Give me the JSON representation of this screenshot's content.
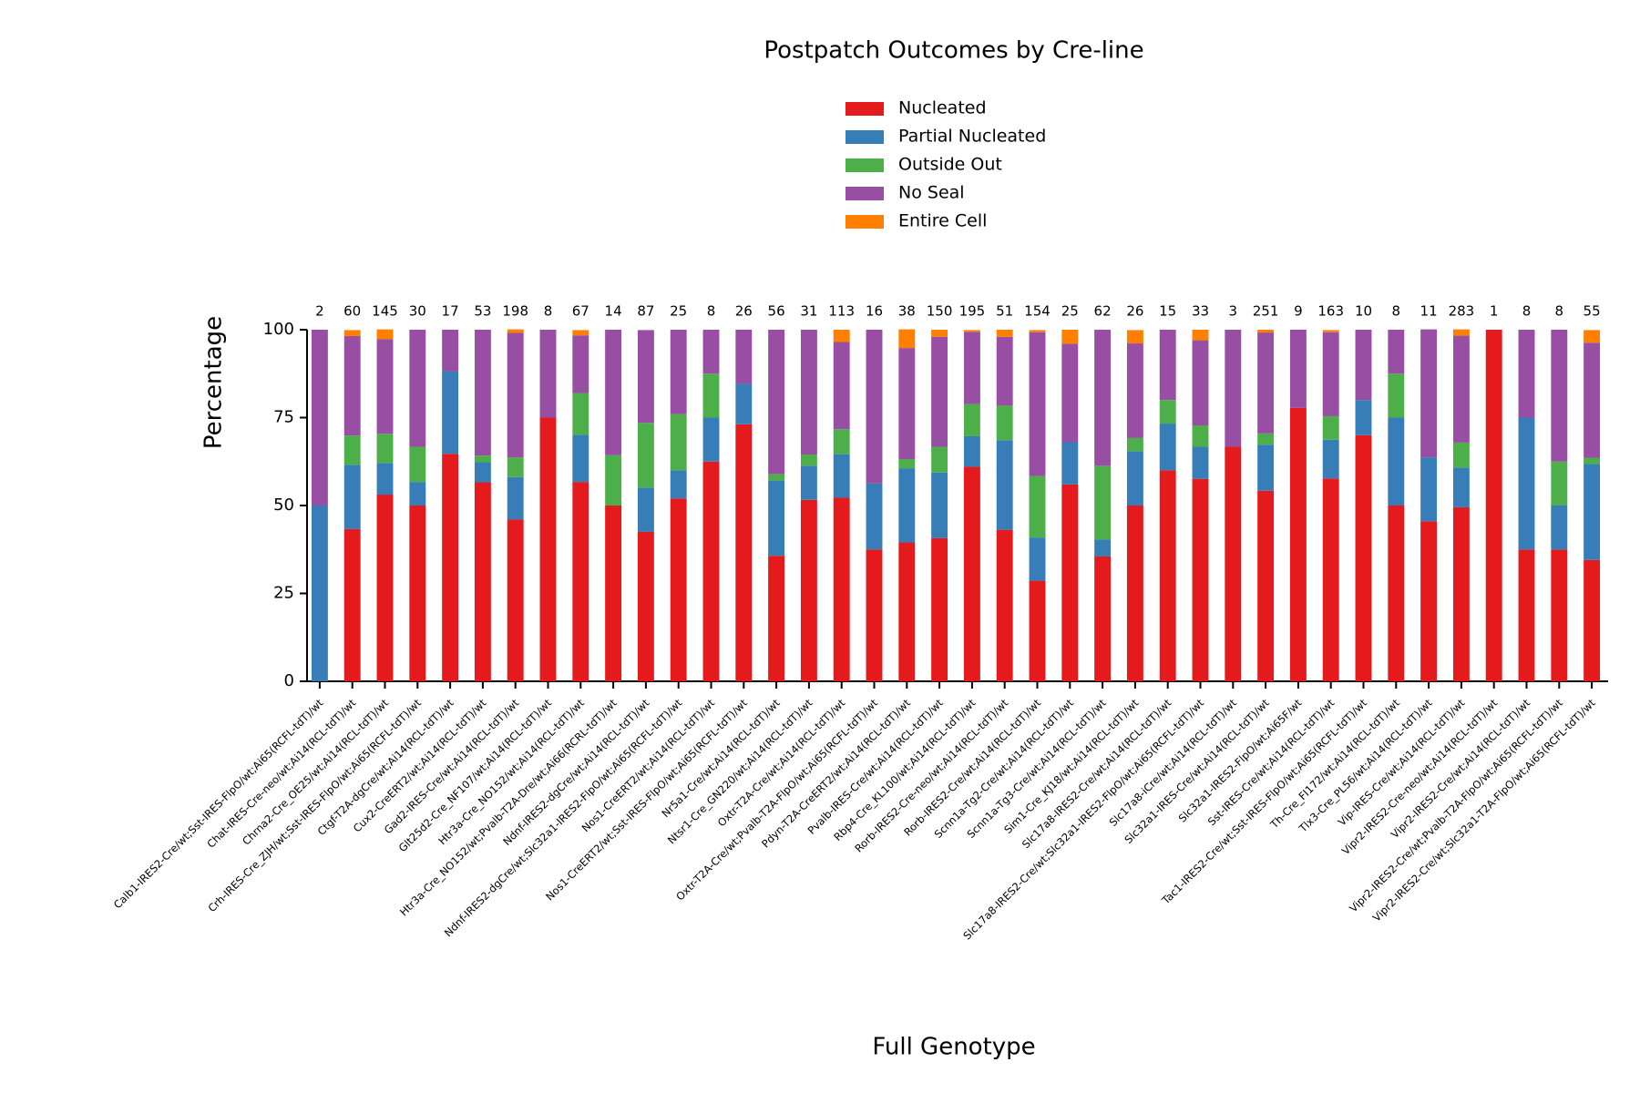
{
  "chart_data": {
    "type": "stacked_bar",
    "title": "Postpatch Outcomes by Cre-line",
    "x_label": "Full Genotype",
    "y_label": "Percentage",
    "categories": [
      "Calb1-IRES2-Cre/wt;Sst-IRES-FlpO/wt;Ai65(RCFL-tdT)/wt",
      "Chat-IRES-Cre-neo/wt;Ai14(RCL-tdT)/wt",
      "Chrna2-Cre_OE25/wt;Ai14(RCL-tdT)/wt",
      "Crh-IRES-Cre_ZJH/wt;Sst-IRES-FlpO/wt;Ai65(RCFL-tdT)/wt",
      "Ctgf-T2A-dgCre/wt;Ai14(RCL-tdT)/wt",
      "Cux2-CreERT2/wt;Ai14(RCL-tdT)/wt",
      "Gad2-IRES-Cre/wt;Ai14(RCL-tdT)/wt",
      "Glt25d2-Cre_NF107/wt;Ai14(RCL-tdT)/wt",
      "Htr3a-Cre_NO152/wt;Ai14(RCL-tdT)/wt",
      "Htr3a-Cre_NO152/wt;Pvalb-T2A-Dre/wt;Ai66(RCRL-tdT)/wt",
      "Ndnf-IRES2-dgCre/wt;Ai14(RCL-tdT)/wt",
      "Ndnf-IRES2-dgCre/wt;Slc32a1-IRES2-FlpO/wt;Ai65(RCFL-tdT)/wt",
      "Nos1-CreERT2/wt;Ai14(RCL-tdT)/wt",
      "Nos1-CreERT2/wt;Sst-IRES-FlpO/wt;Ai65(RCFL-tdT)/wt",
      "Nr5a1-Cre/wt;Ai14(RCL-tdT)/wt",
      "Ntsr1-Cre_GN220/wt;Ai14(RCL-tdT)/wt",
      "Oxtr-T2A-Cre/wt;Ai14(RCL-tdT)/wt",
      "Oxtr-T2A-Cre/wt;Pvalb-T2A-FlpO/wt;Ai65(RCFL-tdT)/wt",
      "Pdyn-T2A-CreERT2/wt;Ai14(RCL-tdT)/wt",
      "Pvalb-IRES-Cre/wt;Ai14(RCL-tdT)/wt",
      "Rbp4-Cre_KL100/wt;Ai14(RCL-tdT)/wt",
      "Rorb-IRES2-Cre-neo/wt;Ai14(RCL-tdT)/wt",
      "Rorb-IRES2-Cre/wt;Ai14(RCL-tdT)/wt",
      "Scnn1a-Tg2-Cre/wt;Ai14(RCL-tdT)/wt",
      "Scnn1a-Tg3-Cre/wt;Ai14(RCL-tdT)/wt",
      "Sim1-Cre_KJ18/wt;Ai14(RCL-tdT)/wt",
      "Slc17a8-IRES2-Cre/wt;Ai14(RCL-tdT)/wt",
      "Slc17a8-IRES2-Cre/wt;Slc32a1-IRES2-FlpO/wt;Ai65(RCFL-tdT)/wt",
      "Slc17a8-iCre/wt;Ai14(RCL-tdT)/wt",
      "Slc32a1-IRES-Cre/wt;Ai14(RCL-tdT)/wt",
      "Slc32a1-IRES2-FlpO/wt;Ai65F/wt",
      "Sst-IRES-Cre/wt;Ai14(RCL-tdT)/wt",
      "Tac1-IRES2-Cre/wt;Sst-IRES-FlpO/wt;Ai65(RCFL-tdT)/wt",
      "Th-Cre_FI172/wt;Ai14(RCL-tdT)/wt",
      "Tlx3-Cre_PL56/wt;Ai14(RCL-tdT)/wt",
      "Vip-IRES-Cre/wt;Ai14(RCL-tdT)/wt",
      "Vipr2-IRES2-Cre-neo/wt;Ai14(RCL-tdT)/wt",
      "Vipr2-IRES2-Cre/wt;Ai14(RCL-tdT)/wt",
      "Vipr2-IRES2-Cre/wt;Pvalb-T2A-FlpO/wt;Ai65(RCFL-tdT)/wt",
      "Vipr2-IRES2-Cre/wt;Slc32a1-T2A-FlpO/wt;Ai65(RCFL-tdT)/wt"
    ],
    "bar_counts": [
      2,
      60,
      145,
      30,
      17,
      53,
      198,
      8,
      67,
      14,
      87,
      25,
      8,
      26,
      56,
      31,
      113,
      16,
      38,
      150,
      195,
      51,
      154,
      25,
      62,
      26,
      15,
      33,
      3,
      251,
      9,
      163,
      10,
      8,
      11,
      283,
      1,
      8,
      8,
      55
    ],
    "series": [
      {
        "name": "Nucleated",
        "color": "#e41a1c",
        "values": [
          0,
          43.3,
          53.1,
          50,
          64.7,
          56.6,
          46.0,
          75,
          56.7,
          50,
          42.5,
          52,
          62.5,
          73.1,
          35.7,
          51.6,
          52.2,
          37.5,
          39.5,
          40.7,
          61.0,
          43.1,
          28.6,
          56,
          35.5,
          50,
          60,
          57.6,
          66.7,
          54.2,
          77.8,
          57.7,
          70,
          50,
          45.5,
          49.5,
          100,
          37.5,
          37.5,
          34.5
        ]
      },
      {
        "name": "Partial Nucleated",
        "color": "#377eb8",
        "values": [
          50,
          18.3,
          9.0,
          6.7,
          23.5,
          5.7,
          12.1,
          0,
          13.4,
          0,
          12.6,
          8,
          12.5,
          11.5,
          21.4,
          9.7,
          12.4,
          18.75,
          21.1,
          18.7,
          8.7,
          25.5,
          12.3,
          12,
          4.8,
          15.4,
          13.3,
          9.1,
          0,
          13.1,
          0,
          11.0,
          10,
          25,
          18.2,
          11.3,
          0,
          37.5,
          12.5,
          27.3
        ]
      },
      {
        "name": "Outside Out",
        "color": "#4daf4a",
        "values": [
          0,
          8.3,
          8.3,
          10,
          0,
          1.9,
          5.6,
          0,
          11.9,
          14.3,
          18.4,
          16,
          12.5,
          0,
          1.8,
          3.2,
          7.1,
          0,
          2.6,
          7.3,
          9.2,
          9.8,
          17.5,
          0,
          21.0,
          3.8,
          6.7,
          6.1,
          0,
          3.2,
          0,
          6.7,
          0,
          12.5,
          0,
          7.1,
          0,
          0,
          12.5,
          1.8
        ]
      },
      {
        "name": "No Seal",
        "color": "#984ea3",
        "values": [
          50,
          28.3,
          26.9,
          33.3,
          11.8,
          35.8,
          35.4,
          25,
          16.4,
          35.7,
          26.4,
          24,
          12.5,
          15.4,
          41.1,
          35.5,
          24.8,
          43.75,
          31.6,
          31.3,
          20.5,
          19.6,
          40.9,
          28,
          38.7,
          26.9,
          20,
          24.2,
          33.3,
          28.7,
          22.2,
          23.9,
          20,
          12.5,
          36.4,
          30.4,
          0,
          25,
          37.5,
          32.7
        ]
      },
      {
        "name": "Entire Cell",
        "color": "#ff7f00",
        "values": [
          0,
          1.7,
          2.8,
          0,
          0,
          0,
          1.0,
          0,
          1.5,
          0,
          0,
          0,
          0,
          0,
          0,
          0,
          3.5,
          0,
          5.3,
          2,
          0.5,
          2.0,
          0.6,
          4,
          0,
          3.8,
          0,
          3.0,
          0,
          0.8,
          0,
          0.6,
          0,
          0,
          0,
          1.8,
          0,
          0,
          0,
          3.6
        ]
      }
    ],
    "ylim": [
      0,
      100
    ],
    "yticks": [
      0,
      25,
      50,
      75,
      100
    ],
    "grid": false,
    "legend": "top"
  }
}
